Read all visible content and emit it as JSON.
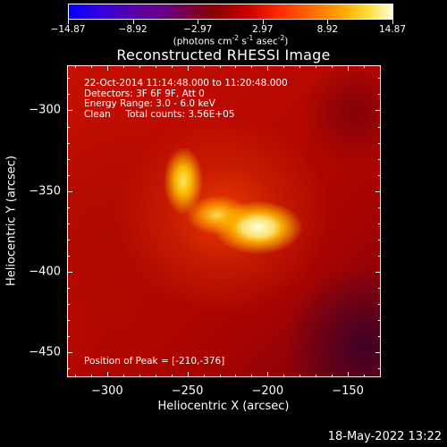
{
  "colorbar": {
    "ticks": [
      "-14.87",
      "-8.92",
      "-2.97",
      "2.97",
      "8.92",
      "14.87"
    ],
    "range": [
      -14.87,
      14.87
    ],
    "units_prefix": "(photons cm",
    "units_exp1": "-2",
    "units_mid1": " s",
    "units_exp2": "-1",
    "units_mid2": " asec",
    "units_exp3": "-2",
    "units_suffix": ")"
  },
  "chart_data": {
    "type": "heatmap",
    "title": "Reconstructed RHESSI Image",
    "xlabel": "Heliocentric X (arcsec)",
    "ylabel": "Heliocentric Y (arcsec)",
    "xlim": [
      -325,
      -130
    ],
    "ylim": [
      -465,
      -272
    ],
    "x_ticks": [
      -300,
      -250,
      -200,
      -150
    ],
    "y_ticks": [
      -300,
      -350,
      -400,
      -450
    ],
    "x_tick_labels": [
      "−300",
      "−250",
      "−200",
      "−150"
    ],
    "y_tick_labels": [
      "−300",
      "−350",
      "−400",
      "−450"
    ],
    "annotations": [
      "22-Oct-2014 11:14:48.000 to 11:20:48.000",
      "Detectors: 3F 6F 9F, Att 0",
      "Energy Range: 3.0 - 6.0 keV",
      "Clean     Total counts: 3.56E+05"
    ],
    "peak_position": [
      -210,
      -376
    ],
    "peak_label": "Position of Peak = [-210,-376]",
    "colormap": "red-temperature",
    "value_range": [
      -14.87,
      14.87
    ]
  },
  "footer": {
    "timestamp": "18-May-2022 13:22"
  },
  "colors": {
    "background": "#000000",
    "foreground": "#ffffff"
  }
}
